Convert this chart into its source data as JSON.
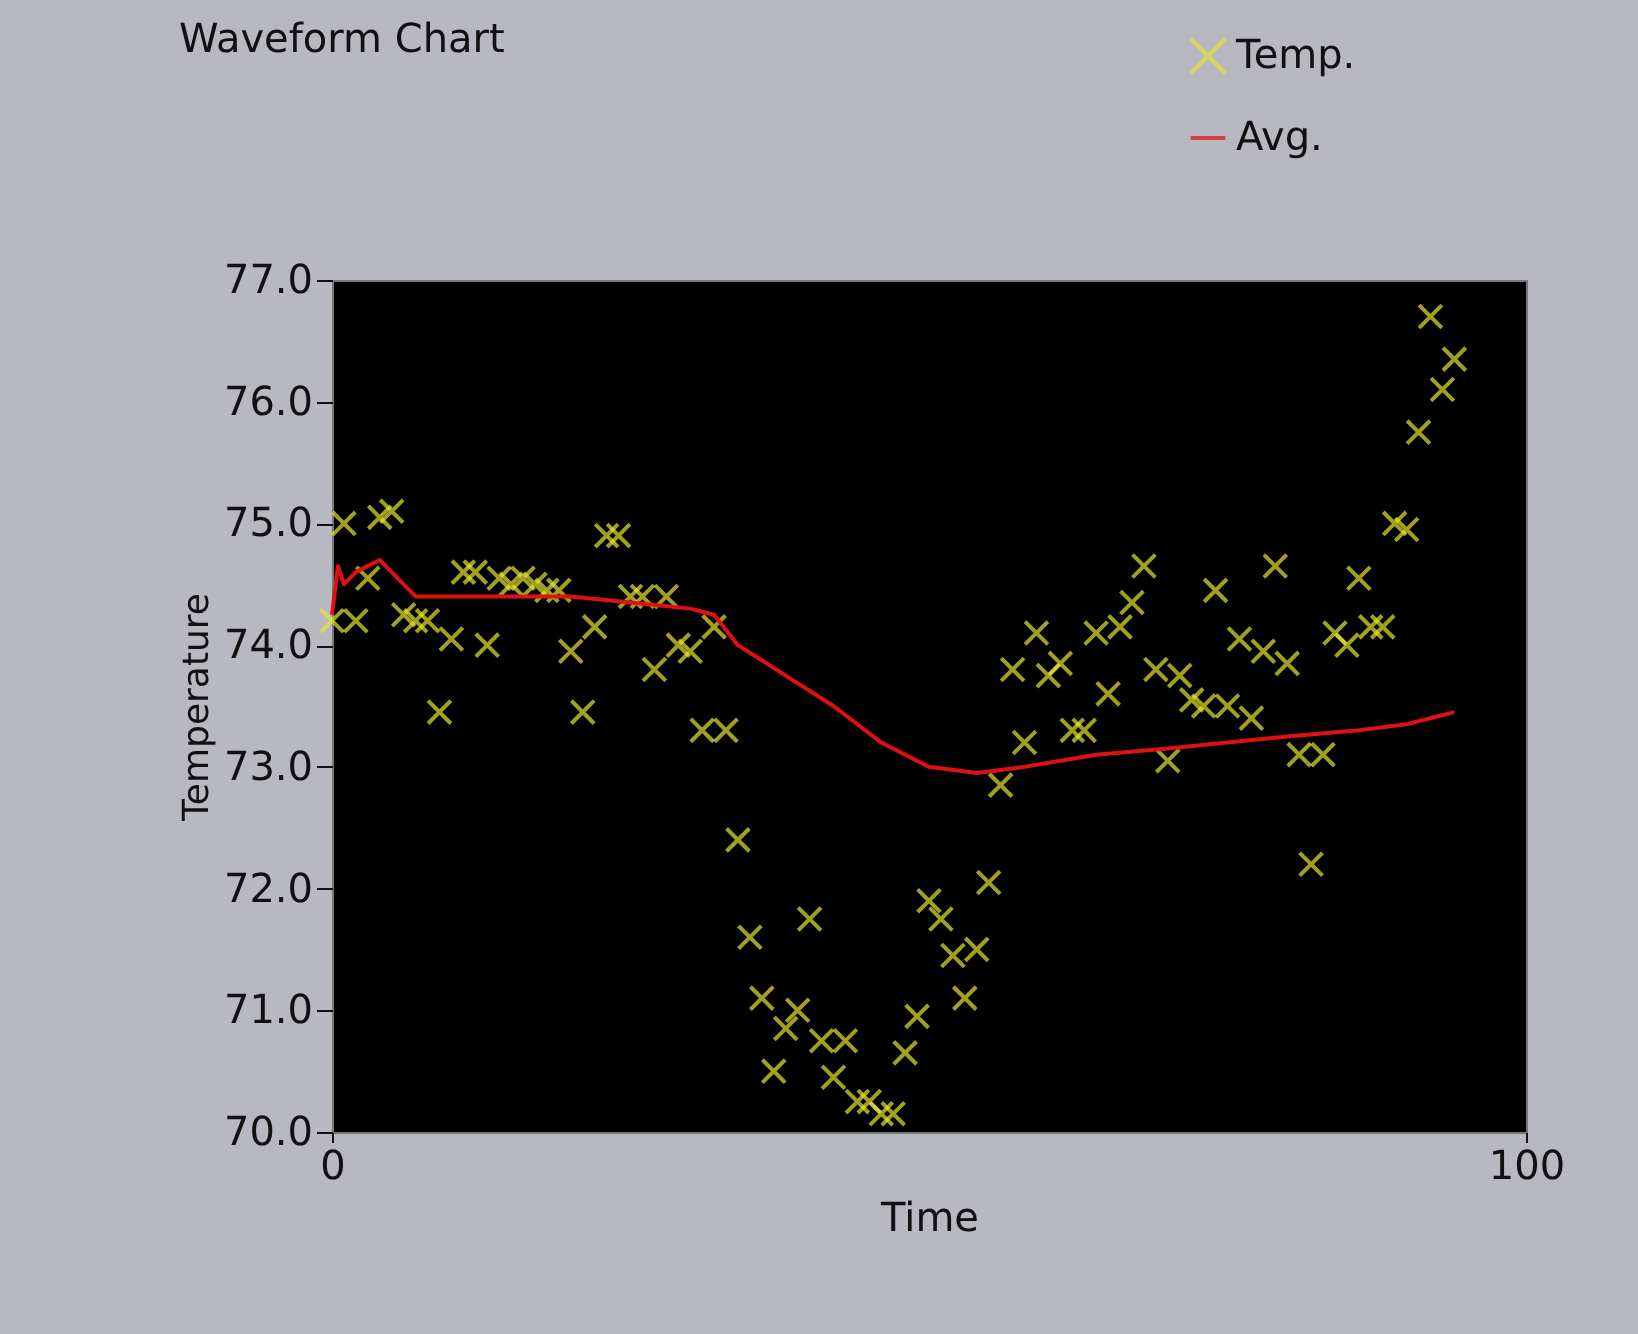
{
  "chart_data": {
    "type": "scatter",
    "title": "Waveform Chart",
    "xlabel": "Time",
    "ylabel": "Temperature",
    "x": [
      0,
      1,
      2,
      3,
      4,
      5,
      6,
      7,
      8,
      9,
      10,
      11,
      12,
      13,
      14,
      15,
      16,
      17,
      18,
      19,
      20,
      21,
      22,
      23,
      24,
      25,
      26,
      27,
      28,
      29,
      30,
      31,
      32,
      33,
      34,
      35,
      36,
      37,
      38,
      39,
      40,
      41,
      42,
      43,
      44,
      45,
      46,
      47,
      48,
      49,
      50,
      51,
      52,
      53,
      54,
      55,
      56,
      57,
      58,
      59,
      60,
      61,
      62,
      63,
      64,
      65,
      66,
      67,
      68,
      69,
      70,
      71,
      72,
      73,
      74,
      75,
      76,
      77,
      78,
      79,
      80,
      81,
      82,
      83,
      84,
      85,
      86,
      87,
      88,
      89,
      90,
      91,
      92,
      93,
      94
    ],
    "series": [
      {
        "name": "Temp.",
        "color": "#e6e62e",
        "marker": "cross",
        "values": [
          74.2,
          75.0,
          74.2,
          74.55,
          75.05,
          75.1,
          74.25,
          74.2,
          74.2,
          73.45,
          74.05,
          74.6,
          74.6,
          74.0,
          74.55,
          74.5,
          74.55,
          74.5,
          74.45,
          74.45,
          73.95,
          73.45,
          74.15,
          74.9,
          74.9,
          74.4,
          74.4,
          73.8,
          74.4,
          74.0,
          73.95,
          73.3,
          74.15,
          73.3,
          72.4,
          71.6,
          71.1,
          70.5,
          70.85,
          71.0,
          71.75,
          70.75,
          70.45,
          70.75,
          70.25,
          70.25,
          70.15,
          70.15,
          70.65,
          70.95,
          71.9,
          71.75,
          71.45,
          71.1,
          71.5,
          72.05,
          72.85,
          73.8,
          73.2,
          74.1,
          73.75,
          73.85,
          73.3,
          73.3,
          74.1,
          73.6,
          74.15,
          74.35,
          74.65,
          73.8,
          73.05,
          73.75,
          73.55,
          73.5,
          74.45,
          73.5,
          74.05,
          73.4,
          73.95,
          74.65,
          73.85,
          73.1,
          72.2,
          73.1,
          74.1,
          74.0,
          74.55,
          74.15,
          74.15,
          75.0,
          74.95,
          75.75,
          76.7,
          76.1,
          76.35
        ]
      },
      {
        "name": "Avg.",
        "color": "#e01010",
        "type": "line",
        "x": [
          0,
          0.5,
          1,
          2,
          3,
          4,
          5,
          6,
          7,
          10,
          15,
          20,
          25,
          30,
          32,
          34,
          38,
          42,
          46,
          50,
          54,
          58,
          64,
          70,
          75,
          80,
          86,
          90,
          94
        ],
        "values": [
          74.25,
          74.65,
          74.5,
          74.6,
          74.65,
          74.7,
          74.6,
          74.5,
          74.4,
          74.4,
          74.4,
          74.4,
          74.35,
          74.3,
          74.25,
          74.0,
          73.75,
          73.5,
          73.2,
          73.0,
          72.95,
          73.0,
          73.1,
          73.15,
          73.2,
          73.25,
          73.3,
          73.35,
          73.45
        ]
      }
    ],
    "xlim": [
      0,
      100
    ],
    "xticks": [
      0,
      100
    ],
    "ylim": [
      70,
      77
    ],
    "yticks": [
      {
        "value": 70,
        "label": "70.0"
      },
      {
        "value": 71,
        "label": "71.0"
      },
      {
        "value": 72,
        "label": "72.0"
      },
      {
        "value": 73,
        "label": "73.0"
      },
      {
        "value": 74,
        "label": "74.0"
      },
      {
        "value": 75,
        "label": "75.0"
      },
      {
        "value": 76,
        "label": "76.0"
      },
      {
        "value": 77,
        "label": "77.0"
      }
    ],
    "legend": "top right"
  }
}
